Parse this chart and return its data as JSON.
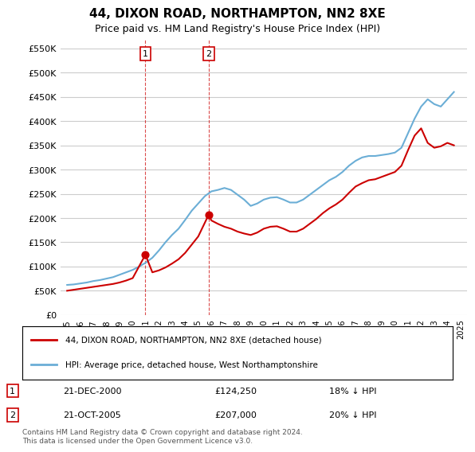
{
  "title": "44, DIXON ROAD, NORTHAMPTON, NN2 8XE",
  "subtitle": "Price paid vs. HM Land Registry's House Price Index (HPI)",
  "footer": "Contains HM Land Registry data © Crown copyright and database right 2024.\nThis data is licensed under the Open Government Licence v3.0.",
  "legend_line1": "44, DIXON ROAD, NORTHAMPTON, NN2 8XE (detached house)",
  "legend_line2": "HPI: Average price, detached house, West Northamptonshire",
  "transaction1_label": "1",
  "transaction1_date": "21-DEC-2000",
  "transaction1_price": "£124,250",
  "transaction1_hpi": "18% ↓ HPI",
  "transaction1_year": 2000.97,
  "transaction1_value": 124250,
  "transaction2_label": "2",
  "transaction2_date": "21-OCT-2005",
  "transaction2_price": "£207,000",
  "transaction2_hpi": "20% ↓ HPI",
  "transaction2_year": 2005.8,
  "transaction2_value": 207000,
  "hpi_color": "#6baed6",
  "price_color": "#cc0000",
  "dashed_color": "#cc0000",
  "marker_color": "#cc0000",
  "ylim": [
    0,
    570000
  ],
  "yticks": [
    0,
    50000,
    100000,
    150000,
    200000,
    250000,
    300000,
    350000,
    400000,
    450000,
    500000,
    550000
  ],
  "background_color": "#ffffff",
  "grid_color": "#cccccc",
  "hpi_data_x": [
    1995,
    1995.5,
    1996,
    1996.5,
    1997,
    1997.5,
    1998,
    1998.5,
    1999,
    1999.5,
    2000,
    2000.5,
    2001,
    2001.5,
    2002,
    2002.5,
    2003,
    2003.5,
    2004,
    2004.5,
    2005,
    2005.5,
    2006,
    2006.5,
    2007,
    2007.5,
    2008,
    2008.5,
    2009,
    2009.5,
    2010,
    2010.5,
    2011,
    2011.5,
    2012,
    2012.5,
    2013,
    2013.5,
    2014,
    2014.5,
    2015,
    2015.5,
    2016,
    2016.5,
    2017,
    2017.5,
    2018,
    2018.5,
    2019,
    2019.5,
    2020,
    2020.5,
    2021,
    2021.5,
    2022,
    2022.5,
    2023,
    2023.5,
    2024,
    2024.5
  ],
  "hpi_data_y": [
    62000,
    63000,
    65000,
    67000,
    70000,
    72000,
    75000,
    78000,
    83000,
    88000,
    93000,
    100000,
    108000,
    118000,
    133000,
    150000,
    165000,
    178000,
    196000,
    215000,
    230000,
    245000,
    255000,
    258000,
    262000,
    258000,
    248000,
    238000,
    225000,
    230000,
    238000,
    242000,
    243000,
    238000,
    232000,
    232000,
    238000,
    248000,
    258000,
    268000,
    278000,
    285000,
    295000,
    308000,
    318000,
    325000,
    328000,
    328000,
    330000,
    332000,
    335000,
    345000,
    375000,
    405000,
    430000,
    445000,
    435000,
    430000,
    445000,
    460000
  ],
  "price_data_x": [
    1995,
    1995.5,
    1996,
    1996.5,
    1997,
    1997.5,
    1998,
    1998.5,
    1999,
    1999.5,
    2000,
    2000.97,
    2001.5,
    2002,
    2002.5,
    2003,
    2003.5,
    2004,
    2004.5,
    2005,
    2005.8,
    2006,
    2006.5,
    2007,
    2007.5,
    2008,
    2008.5,
    2009,
    2009.5,
    2010,
    2010.5,
    2011,
    2011.5,
    2012,
    2012.5,
    2013,
    2013.5,
    2014,
    2014.5,
    2015,
    2015.5,
    2016,
    2016.5,
    2017,
    2017.5,
    2018,
    2018.5,
    2019,
    2019.5,
    2020,
    2020.5,
    2021,
    2021.5,
    2022,
    2022.5,
    2023,
    2023.5,
    2024,
    2024.5
  ],
  "price_data_y": [
    50000,
    52000,
    54000,
    56000,
    58000,
    60000,
    62000,
    64000,
    67000,
    71000,
    76000,
    124250,
    88000,
    92000,
    98000,
    106000,
    115000,
    128000,
    145000,
    162000,
    207000,
    195000,
    188000,
    182000,
    178000,
    172000,
    168000,
    165000,
    170000,
    178000,
    182000,
    183000,
    178000,
    172000,
    172000,
    178000,
    188000,
    198000,
    210000,
    220000,
    228000,
    238000,
    252000,
    265000,
    272000,
    278000,
    280000,
    285000,
    290000,
    295000,
    308000,
    340000,
    370000,
    385000,
    355000,
    345000,
    348000,
    355000,
    350000
  ]
}
